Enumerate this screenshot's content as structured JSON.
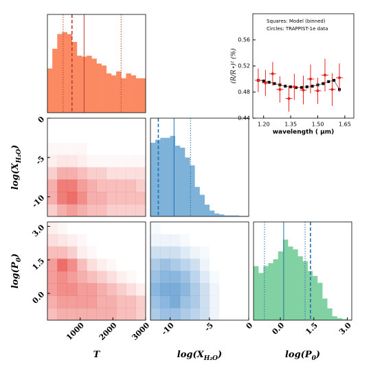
{
  "chart_data": [
    {
      "type": "histogram",
      "color": "#fb8a63",
      "line_color": "#c0392b",
      "bins": [
        0,
        150,
        300,
        450,
        600,
        750,
        900,
        1050,
        1200,
        1350,
        1500,
        1650,
        1800,
        1950,
        2100,
        2250,
        2400,
        2550,
        2700,
        2850,
        3000
      ],
      "values": [
        45,
        65,
        80,
        82,
        80,
        72,
        58,
        57,
        58,
        55,
        50,
        48,
        40,
        38,
        42,
        35,
        40,
        38,
        35,
        35
      ],
      "xlim": [
        0,
        3000
      ],
      "ylim": [
        0,
        100
      ],
      "markers": [
        {
          "value": 480,
          "style": "dotted"
        },
        {
          "value": 750,
          "style": "dashed"
        },
        {
          "value": 1120,
          "style": "solid"
        },
        {
          "value": 2250,
          "style": "dotted"
        }
      ]
    },
    {
      "type": "heatmap",
      "color": "#e8413a",
      "xlim": [
        0,
        3000
      ],
      "ylim": [
        -12.5,
        0
      ],
      "ylabel": [
        "log(X",
        "H₂O",
        ")"
      ],
      "yticks": [
        0,
        -5,
        -10
      ],
      "z": [
        [
          0.3,
          0.5,
          0.6,
          0.5,
          0.4,
          0.4,
          0.3,
          0.3,
          0.3,
          0.3
        ],
        [
          0.5,
          0.8,
          0.9,
          0.7,
          0.5,
          0.5,
          0.4,
          0.4,
          0.4,
          0.4
        ],
        [
          0.5,
          0.8,
          0.8,
          0.6,
          0.5,
          0.4,
          0.4,
          0.4,
          0.4,
          0.3
        ],
        [
          0.3,
          0.5,
          0.5,
          0.4,
          0.3,
          0.3,
          0.2,
          0.2,
          0.2,
          0.2
        ],
        [
          0.1,
          0.15,
          0.15,
          0.1,
          0.05,
          0.05,
          0.05,
          0.05,
          0.05,
          0.05
        ],
        [
          0.05,
          0.05,
          0.05,
          0.05,
          0,
          0,
          0,
          0,
          0,
          0
        ],
        [
          0,
          0,
          0,
          0,
          0,
          0,
          0,
          0,
          0,
          0
        ],
        [
          0,
          0,
          0,
          0,
          0,
          0,
          0,
          0,
          0,
          0
        ]
      ]
    },
    {
      "type": "histogram",
      "color": "#7fb2d9",
      "line_color": "#2171b5",
      "bins": [
        -12.5,
        -11.875,
        -11.25,
        -10.625,
        -10,
        -9.375,
        -8.75,
        -8.125,
        -7.5,
        -6.875,
        -6.25,
        -5.625,
        -5,
        -4.375,
        -3.75,
        -3.125,
        -2.5,
        -1.875,
        -1.25,
        -0.625,
        0
      ],
      "values": [
        75,
        78,
        80,
        80,
        82,
        72,
        70,
        60,
        52,
        30,
        22,
        12,
        6,
        3,
        2,
        1,
        1,
        1,
        0.5,
        0.5
      ],
      "xlim": [
        -12.5,
        0
      ],
      "ylim": [
        0,
        100
      ],
      "markers": [
        {
          "value": -11.5,
          "style": "dashed"
        },
        {
          "value": -9.5,
          "style": "solid"
        },
        {
          "value": -7.4,
          "style": "dotted"
        }
      ]
    },
    {
      "type": "heatmap",
      "color": "#e8413a",
      "xlim": [
        0,
        3000
      ],
      "ylim": [
        -1.2,
        3.2
      ],
      "xlabel": [
        "T"
      ],
      "ylabel": [
        "log(P",
        "0",
        ")"
      ],
      "xticks": [
        1000,
        2000,
        3000
      ],
      "yticks": [
        {
          "value": 0,
          "label": "0.0"
        },
        {
          "value": 1.5,
          "label": "1.5"
        },
        {
          "value": 3,
          "label": "3.0"
        }
      ],
      "z": [
        [
          0.4,
          0.5,
          0.5,
          0.5,
          0.5,
          0.5,
          0.5,
          0.4,
          0.4,
          0.3
        ],
        [
          0.5,
          0.6,
          0.6,
          0.6,
          0.6,
          0.5,
          0.5,
          0.4,
          0.4,
          0.3
        ],
        [
          0.6,
          0.7,
          0.7,
          0.6,
          0.6,
          0.5,
          0.4,
          0.3,
          0.2,
          0.1
        ],
        [
          0.6,
          0.7,
          0.6,
          0.5,
          0.4,
          0.3,
          0.2,
          0.1,
          0.05,
          0
        ],
        [
          0.6,
          0.9,
          0.7,
          0.4,
          0.2,
          0.1,
          0.05,
          0,
          0,
          0
        ],
        [
          0.4,
          0.4,
          0.3,
          0.1,
          0.05,
          0,
          0,
          0,
          0,
          0
        ],
        [
          0.2,
          0.15,
          0.1,
          0.05,
          0,
          0,
          0,
          0,
          0,
          0
        ],
        [
          0.1,
          0.05,
          0,
          0,
          0,
          0,
          0,
          0,
          0,
          0
        ]
      ]
    },
    {
      "type": "heatmap",
      "color": "#3d85c6",
      "xlim": [
        -12.5,
        0
      ],
      "ylim": [
        -1.2,
        3.2
      ],
      "xlabel": [
        "log(X",
        "H₂O",
        ")"
      ],
      "xticks": [
        -10,
        -5,
        0
      ],
      "z": [
        [
          0.5,
          0.6,
          0.6,
          0.5,
          0.4,
          0.3,
          0.1,
          0,
          0,
          0
        ],
        [
          0.6,
          0.7,
          0.8,
          0.6,
          0.5,
          0.3,
          0.1,
          0,
          0,
          0
        ],
        [
          0.7,
          0.8,
          0.8,
          0.7,
          0.5,
          0.3,
          0.1,
          0,
          0,
          0
        ],
        [
          0.6,
          0.7,
          0.7,
          0.6,
          0.4,
          0.2,
          0.05,
          0,
          0,
          0
        ],
        [
          0.5,
          0.6,
          0.5,
          0.4,
          0.3,
          0.1,
          0,
          0,
          0,
          0
        ],
        [
          0.3,
          0.3,
          0.3,
          0.2,
          0.1,
          0.05,
          0,
          0,
          0,
          0
        ],
        [
          0.1,
          0.1,
          0.1,
          0.05,
          0,
          0,
          0,
          0,
          0,
          0
        ],
        [
          0.05,
          0,
          0,
          0,
          0,
          0,
          0,
          0,
          0,
          0
        ]
      ]
    },
    {
      "type": "histogram",
      "color": "#82d1a2",
      "line_color": "#2171b5",
      "bins": [
        -1.2,
        -0.98,
        -0.76,
        -0.54,
        -0.32,
        -0.1,
        0.12,
        0.34,
        0.56,
        0.78,
        1.0,
        1.22,
        1.44,
        1.66,
        1.88,
        2.1,
        2.32,
        2.54,
        2.76,
        2.98,
        3.2
      ],
      "values": [
        55,
        48,
        55,
        58,
        62,
        70,
        82,
        75,
        72,
        65,
        60,
        50,
        45,
        38,
        22,
        12,
        4,
        2,
        1,
        0.5
      ],
      "xlim": [
        -1.2,
        3.2
      ],
      "ylim": [
        0,
        100
      ],
      "xlabel": [
        "log(P",
        "0",
        ")"
      ],
      "xticks": [
        {
          "value": 0,
          "label": "0.0"
        },
        {
          "value": 1.5,
          "label": "1.5"
        },
        {
          "value": 3,
          "label": "3.0"
        }
      ],
      "markers": [
        {
          "value": -0.71,
          "style": "dotted"
        },
        {
          "value": 0.15,
          "style": "solid"
        },
        {
          "value": 1.11,
          "style": "dotted"
        },
        {
          "value": 1.35,
          "style": "dashed"
        }
      ]
    },
    {
      "type": "scatter",
      "xlim": [
        1.14,
        1.7
      ],
      "ylim": [
        0.44,
        0.6
      ],
      "xlabel": "wavelength ( μm)",
      "ylabel": "(R/R⋆)² (%)",
      "xticks": [
        {
          "value": 1.2,
          "label": "1.20"
        },
        {
          "value": 1.35,
          "label": "1.35"
        },
        {
          "value": 1.5,
          "label": "1.50"
        },
        {
          "value": 1.65,
          "label": "1.65"
        }
      ],
      "yticks": [
        0.44,
        0.48,
        0.52,
        0.56
      ],
      "series": [
        {
          "name": "Squares: Model (binned)",
          "color": "#000000",
          "marker": "square",
          "x": [
            1.17,
            1.2,
            1.23,
            1.26,
            1.29,
            1.32,
            1.35,
            1.38,
            1.41,
            1.44,
            1.47,
            1.5,
            1.53,
            1.56,
            1.59,
            1.62
          ],
          "values": [
            0.498,
            0.497,
            0.495,
            0.493,
            0.491,
            0.489,
            0.488,
            0.487,
            0.487,
            0.488,
            0.489,
            0.491,
            0.493,
            0.496,
            0.498,
            0.484
          ]
        },
        {
          "name": "Circles: TRAPPIST-1e data",
          "color": "#e8221c",
          "marker": "circle",
          "x": [
            1.17,
            1.21,
            1.25,
            1.29,
            1.34,
            1.37,
            1.42,
            1.46,
            1.5,
            1.54,
            1.58,
            1.62
          ],
          "values": [
            0.498,
            0.494,
            0.508,
            0.484,
            0.47,
            0.488,
            0.483,
            0.5,
            0.482,
            0.506,
            0.484,
            0.502
          ],
          "errors": [
            0.018,
            0.02,
            0.018,
            0.02,
            0.02,
            0.02,
            0.022,
            0.022,
            0.02,
            0.025,
            0.025,
            0.022
          ]
        }
      ]
    }
  ]
}
